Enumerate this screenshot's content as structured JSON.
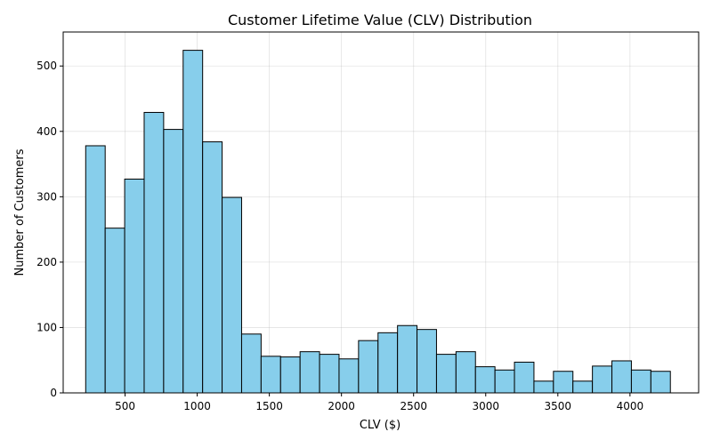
{
  "chart_data": {
    "type": "bar",
    "subtype": "histogram",
    "title": "Customer Lifetime Value (CLV) Distribution",
    "xlabel": "CLV ($)",
    "ylabel": "Number of Customers",
    "xlim": [
      71,
      4476
    ],
    "ylim": [
      0,
      552
    ],
    "x_ticks": [
      500,
      1000,
      1500,
      2000,
      2500,
      3000,
      3500,
      4000
    ],
    "y_ticks": [
      0,
      100,
      200,
      300,
      400,
      500
    ],
    "grid": true,
    "legend": "none",
    "bin_start": 227,
    "bin_width": 135.1,
    "values": [
      378,
      252,
      327,
      429,
      403,
      524,
      384,
      299,
      90,
      56,
      55,
      63,
      59,
      52,
      80,
      92,
      103,
      97,
      59,
      63,
      40,
      35,
      47,
      18,
      33,
      18,
      41,
      49,
      35,
      33
    ],
    "colors": {
      "bar_fill": "#87ceeb",
      "bar_edge": "#000000",
      "grid": "#b0b0b0",
      "axes": "#000000"
    }
  }
}
